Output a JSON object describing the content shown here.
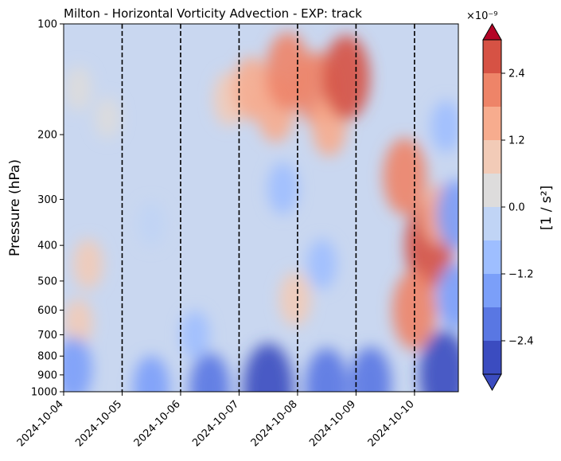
{
  "chart_data": {
    "type": "heatmap",
    "title": "Milton - Horizontal Vorticity Advection - EXP: track",
    "ylabel": "Pressure (hPa)",
    "xlabel": "",
    "x_tick_labels": [
      "2024-10-04",
      "2024-10-05",
      "2024-10-06",
      "2024-10-07",
      "2024-10-08",
      "2024-10-09",
      "2024-10-10"
    ],
    "xlim": [
      "2024-10-04",
      "2024-10-10T18:00"
    ],
    "y_scale": "log",
    "y_inverted": true,
    "ylim": [
      1000,
      100
    ],
    "y_ticks": [
      100,
      200,
      300,
      400,
      500,
      600,
      700,
      800,
      900,
      1000
    ],
    "vertical_lines": [
      "2024-10-05",
      "2024-10-06",
      "2024-10-07",
      "2024-10-08",
      "2024-10-09",
      "2024-10-10"
    ],
    "vertical_line_style": "dashed black",
    "colorbar": {
      "label": "[1 / s²]",
      "scale_label": "×10⁻⁹",
      "ticks": [
        -2.4,
        -1.2,
        0.0,
        1.2,
        2.4
      ],
      "tick_labels": [
        "−2.4",
        "−1.2",
        "0.0",
        "1.2",
        "2.4"
      ],
      "levels": [
        -3.0,
        -2.4,
        -1.8,
        -1.2,
        -0.6,
        0.0,
        0.6,
        1.2,
        1.8,
        2.4,
        3.0
      ],
      "extend": "both",
      "colormap": "coolwarm",
      "colors": [
        "#3b4cc0",
        "#5977e3",
        "#7b9ff9",
        "#9ebeff",
        "#c0d4f5",
        "#dddcdc",
        "#f2cbb7",
        "#f7ac8e",
        "#ee8468",
        "#d65244",
        "#b40426"
      ]
    },
    "field": [
      {
        "date": "2024-10-04T06:00",
        "pressure": 150,
        "value": 0.5
      },
      {
        "date": "2024-10-04T18:00",
        "pressure": 180,
        "value": 0.3
      },
      {
        "date": "2024-10-04T10:00",
        "pressure": 450,
        "value": 0.8
      },
      {
        "date": "2024-10-04T06:00",
        "pressure": 650,
        "value": 0.7
      },
      {
        "date": "2024-10-04T04:00",
        "pressure": 870,
        "value": -1.6
      },
      {
        "date": "2024-10-06T20:00",
        "pressure": 160,
        "value": 1.0
      },
      {
        "date": "2024-10-07T05:00",
        "pressure": 150,
        "value": 1.5
      },
      {
        "date": "2024-10-07T15:00",
        "pressure": 170,
        "value": 1.7
      },
      {
        "date": "2024-10-07T20:00",
        "pressure": 135,
        "value": 2.3
      },
      {
        "date": "2024-10-08T08:00",
        "pressure": 150,
        "value": 2.0
      },
      {
        "date": "2024-10-08T13:00",
        "pressure": 190,
        "value": 1.3
      },
      {
        "date": "2024-10-08T20:00",
        "pressure": 140,
        "value": 2.6
      },
      {
        "date": "2024-10-07T23:00",
        "pressure": 560,
        "value": 1.0
      },
      {
        "date": "2024-10-09T20:00",
        "pressure": 260,
        "value": 2.2
      },
      {
        "date": "2024-10-10T06:00",
        "pressure": 400,
        "value": 2.7
      },
      {
        "date": "2024-10-10T00:00",
        "pressure": 600,
        "value": 2.3
      },
      {
        "date": "2024-10-10T10:00",
        "pressure": 330,
        "value": 1.3
      },
      {
        "date": "2024-10-10T13:00",
        "pressure": 190,
        "value": -0.9
      },
      {
        "date": "2024-10-10T17:00",
        "pressure": 330,
        "value": -1.8
      },
      {
        "date": "2024-10-10T17:00",
        "pressure": 550,
        "value": -1.6
      },
      {
        "date": "2024-10-10T12:00",
        "pressure": 900,
        "value": -2.8
      },
      {
        "date": "2024-10-09T06:00",
        "pressure": 950,
        "value": -2.0
      },
      {
        "date": "2024-10-07T12:00",
        "pressure": 980,
        "value": -2.9
      },
      {
        "date": "2024-10-08T12:00",
        "pressure": 970,
        "value": -2.2
      },
      {
        "date": "2024-10-05T12:00",
        "pressure": 975,
        "value": -1.5
      },
      {
        "date": "2024-10-06T12:00",
        "pressure": 980,
        "value": -1.9
      },
      {
        "date": "2024-10-07T18:00",
        "pressure": 280,
        "value": -0.9
      },
      {
        "date": "2024-10-08T10:00",
        "pressure": 450,
        "value": -0.8
      },
      {
        "date": "2024-10-06T06:00",
        "pressure": 700,
        "value": -0.7
      },
      {
        "date": "2024-10-05T12:00",
        "pressure": 350,
        "value": -0.5
      }
    ]
  }
}
